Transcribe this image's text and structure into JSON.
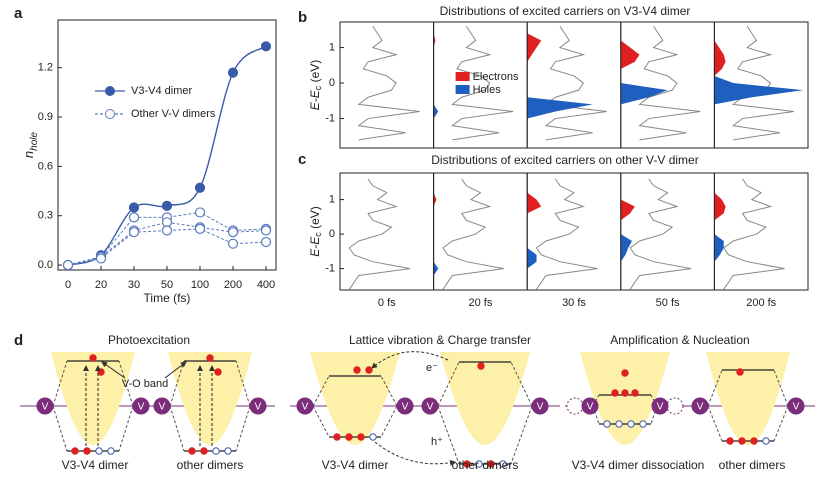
{
  "chart_data": [
    {
      "type": "line",
      "panel": "a",
      "categories": [
        "0",
        "20",
        "30",
        "50",
        "100",
        "200",
        "400"
      ],
      "x_label": "Time (fs)",
      "y_label": "n",
      "y_label_sub": "hole",
      "ylim": [
        -0.03,
        1.49
      ],
      "yticks": [
        {
          "value": 0,
          "label": "0.0"
        },
        {
          "value": 0.3,
          "label": "0.3"
        },
        {
          "value": 0.6,
          "label": "0.6"
        },
        {
          "value": 0.9,
          "label": "0.9"
        },
        {
          "value": 1.2,
          "label": "1.2"
        }
      ],
      "series": [
        {
          "name": "V3-V4 dimer",
          "color": "#3a5ba9",
          "values": [
            0,
            0.06,
            0.35,
            0.36,
            0.47,
            1.17,
            1.33
          ]
        },
        {
          "name": "Other V-V dimers",
          "color": "#5b79c0",
          "lines": [
            [
              0,
              0.05,
              0.29,
              0.29,
              0.32,
              0.21,
              0.22
            ],
            [
              0,
              0.05,
              0.21,
              0.26,
              0.23,
              0.2,
              0.21
            ],
            [
              0,
              0.04,
              0.2,
              0.21,
              0.22,
              0.13,
              0.14
            ]
          ]
        }
      ]
    },
    {
      "type": "dos",
      "panel": "b",
      "title": "Distributions of excited carriers on V3-V4 dimer",
      "y_label": [
        "E-E",
        "c",
        " (eV)"
      ],
      "ylim": [
        -1.83,
        1.72
      ],
      "yticks": [
        -1,
        0,
        1
      ],
      "dos_color": "#888888",
      "energy": [
        -1.6,
        -1.4,
        -1.2,
        -1.0,
        -0.8,
        -0.6,
        -0.4,
        -0.2,
        0,
        0.2,
        0.4,
        0.6,
        0.8,
        1.0,
        1.2,
        1.4,
        1.6
      ],
      "dos": [
        0.2,
        0.7,
        0.2,
        0.3,
        0.85,
        0.2,
        0.3,
        0.55,
        0.6,
        0.5,
        0.25,
        0.3,
        0.6,
        0.35,
        0.45,
        0.4,
        0.35
      ],
      "series": [
        {
          "name": "Electrons",
          "color": "#e02020",
          "values": [
            [
              0,
              0,
              0,
              0,
              0,
              0,
              0,
              0,
              0,
              0,
              0,
              0,
              0,
              0,
              0,
              0,
              0
            ],
            [
              0,
              0,
              0,
              0,
              0,
              0,
              0,
              0,
              0,
              0,
              0,
              0,
              0,
              0,
              0.02,
              0,
              0
            ],
            [
              0,
              0,
              0,
              0,
              0,
              0,
              0,
              0,
              0,
              0,
              0,
              0,
              0.05,
              0.1,
              0.15,
              0,
              0
            ],
            [
              0,
              0,
              0,
              0,
              0,
              0,
              0,
              0,
              0,
              0,
              0,
              0.15,
              0.2,
              0.1,
              0,
              0,
              0
            ],
            [
              0,
              0,
              0,
              0,
              0,
              0,
              0,
              0,
              0,
              0,
              0.08,
              0.12,
              0.1,
              0.05,
              0,
              0,
              0
            ]
          ]
        },
        {
          "name": "Holes",
          "color": "#1f5fbf",
          "values": [
            [
              0,
              0,
              0,
              0,
              0,
              0,
              0,
              0,
              0,
              0,
              0,
              0,
              0,
              0,
              0,
              0,
              0
            ],
            [
              0,
              0,
              0,
              0,
              0.05,
              0,
              0,
              0,
              0,
              0,
              0,
              0,
              0,
              0,
              0,
              0,
              0
            ],
            [
              0,
              0,
              0,
              0,
              0.3,
              0.7,
              0,
              0,
              0,
              0,
              0,
              0,
              0,
              0,
              0,
              0,
              0
            ],
            [
              0,
              0,
              0,
              0,
              0,
              0,
              0.3,
              0.5,
              0,
              0,
              0,
              0,
              0,
              0,
              0,
              0,
              0
            ],
            [
              0,
              0,
              0,
              0,
              0,
              0,
              0.4,
              0.95,
              0.2,
              0,
              0,
              0,
              0,
              0,
              0,
              0,
              0
            ]
          ]
        }
      ]
    },
    {
      "type": "dos",
      "panel": "c",
      "title": "Distributions of excited carriers on other V-V dimer",
      "y_label": [
        "E-E",
        "c",
        " (eV)"
      ],
      "ylim": [
        -1.62,
        1.77
      ],
      "yticks": [
        -1,
        0,
        1
      ],
      "dos_color": "#888888",
      "categories": [
        "0 fs",
        "20 fs",
        "30 fs",
        "50 fs",
        "200 fs"
      ],
      "energy": [
        -1.6,
        -1.4,
        -1.2,
        -1.0,
        -0.8,
        -0.6,
        -0.4,
        -0.2,
        0,
        0.2,
        0.4,
        0.6,
        0.8,
        1.0,
        1.2,
        1.4,
        1.6
      ],
      "dos": [
        0.1,
        0.15,
        0.2,
        0.75,
        0.35,
        0.15,
        0.1,
        0.2,
        0.45,
        0.55,
        0.35,
        0.3,
        0.6,
        0.4,
        0.5,
        0.35,
        0.3
      ],
      "electron_color": "#e02020",
      "hole_color": "#1f5fbf",
      "electrons": [
        [
          0,
          0,
          0,
          0,
          0,
          0,
          0,
          0,
          0,
          0,
          0,
          0,
          0,
          0,
          0,
          0,
          0
        ],
        [
          0,
          0,
          0,
          0,
          0,
          0,
          0,
          0,
          0,
          0,
          0,
          0,
          0,
          0.03,
          0,
          0,
          0
        ],
        [
          0,
          0,
          0,
          0,
          0,
          0,
          0,
          0,
          0,
          0,
          0,
          0,
          0.15,
          0.1,
          0,
          0,
          0
        ],
        [
          0,
          0,
          0,
          0,
          0,
          0,
          0,
          0,
          0,
          0,
          0,
          0.1,
          0.15,
          0,
          0,
          0,
          0
        ],
        [
          0,
          0,
          0,
          0,
          0,
          0,
          0,
          0,
          0,
          0,
          0,
          0.1,
          0.12,
          0.08,
          0,
          0,
          0
        ]
      ],
      "holes": [
        [
          0,
          0,
          0,
          0,
          0,
          0,
          0,
          0,
          0,
          0,
          0,
          0,
          0,
          0,
          0,
          0,
          0
        ],
        [
          0,
          0,
          0,
          0.05,
          0,
          0,
          0,
          0,
          0,
          0,
          0,
          0,
          0,
          0,
          0,
          0,
          0
        ],
        [
          0,
          0,
          0,
          0,
          0.1,
          0.1,
          0,
          0,
          0,
          0,
          0,
          0,
          0,
          0,
          0,
          0,
          0
        ],
        [
          0,
          0,
          0,
          0,
          0,
          0.05,
          0.08,
          0.12,
          0,
          0,
          0,
          0,
          0,
          0,
          0,
          0,
          0
        ],
        [
          0,
          0,
          0,
          0,
          0,
          0.06,
          0.1,
          0.1,
          0,
          0,
          0,
          0,
          0,
          0,
          0,
          0,
          0
        ]
      ]
    }
  ],
  "diagram": {
    "panel": "d",
    "band_label": "V-O band",
    "atom_label": "V",
    "electron_label": "e⁻",
    "hole_label": "h⁺",
    "subpanels": [
      {
        "title": "Photoexcitation",
        "labels": [
          "V3-V4 dimer",
          "other dimers"
        ]
      },
      {
        "title": "Lattice vibration & Charge transfer",
        "labels": [
          "V3-V4 dimer",
          "other dimers"
        ]
      },
      {
        "title": "Amplification & Nucleation",
        "labels": [
          "V3-V4 dimer dissociation",
          "other dimers"
        ]
      }
    ]
  }
}
